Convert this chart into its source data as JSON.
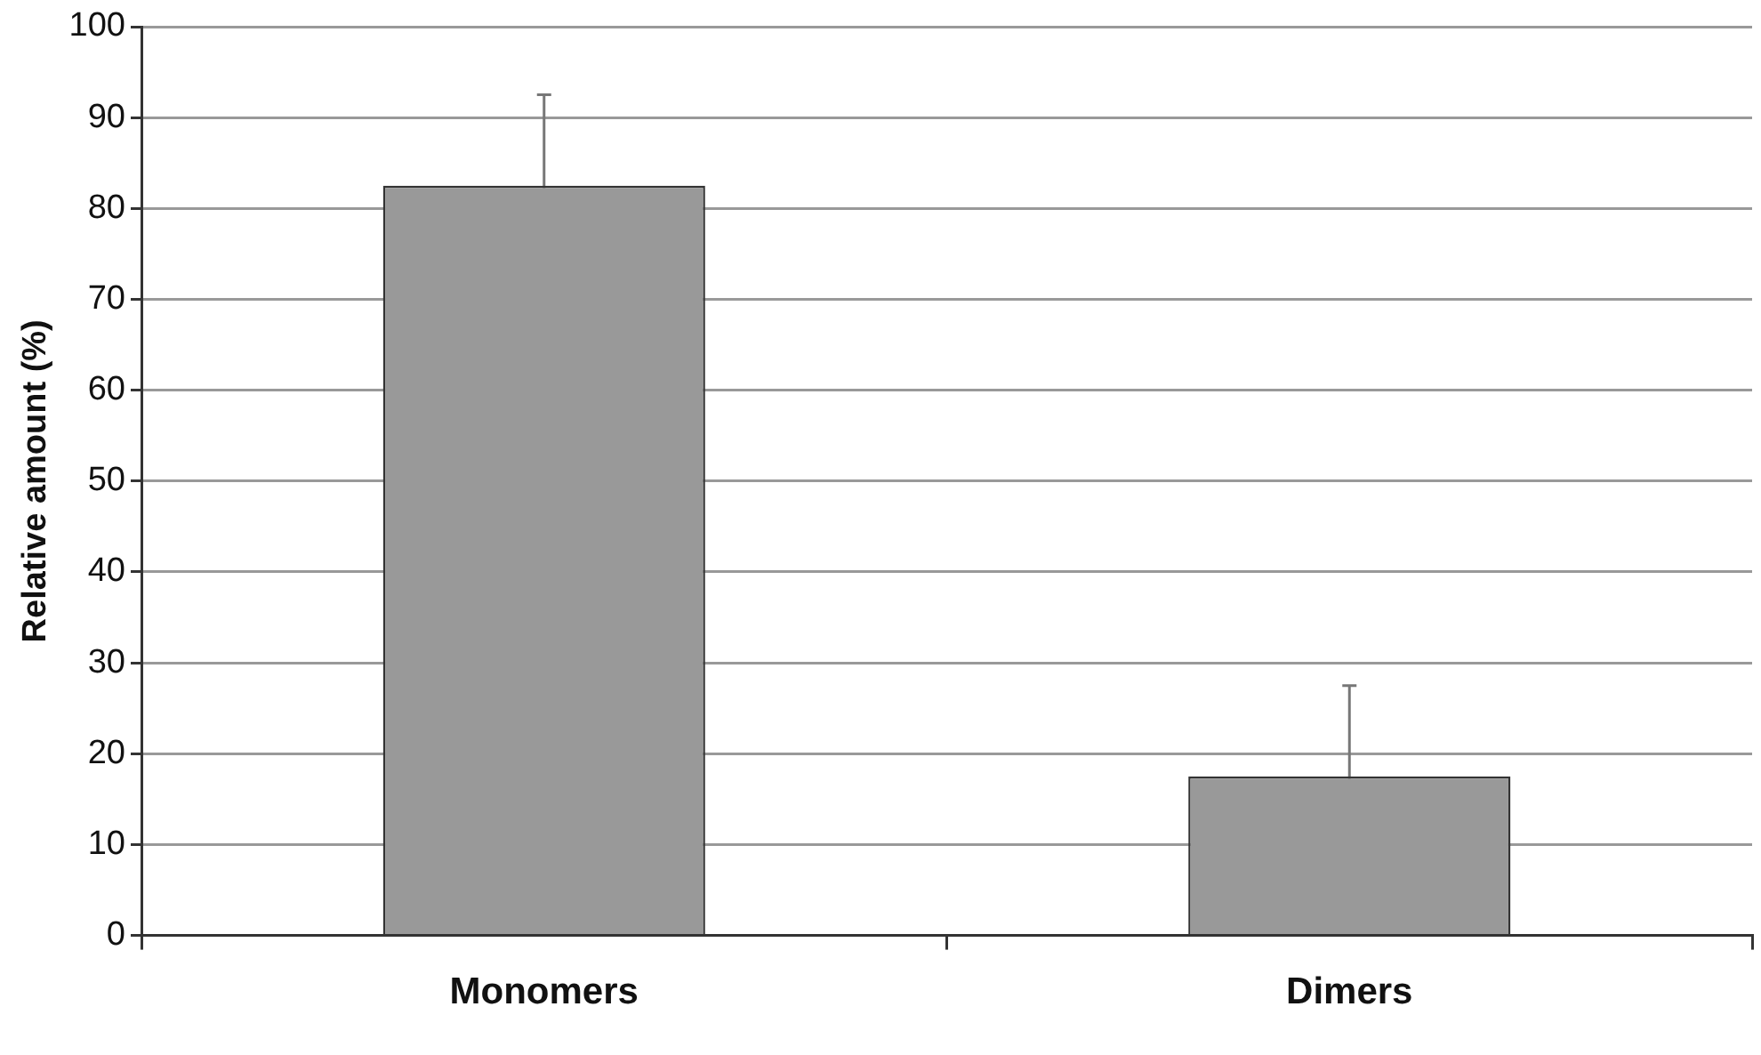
{
  "chart_data": {
    "type": "bar",
    "ylabel": "Relative amount (%)",
    "categories": [
      "Monomers",
      "Dimers"
    ],
    "values": [
      82.5,
      17.5
    ],
    "errors": [
      10,
      10
    ],
    "color": "#999999",
    "ylim": [
      0,
      100
    ],
    "yticks": [
      0,
      10,
      20,
      30,
      40,
      50,
      60,
      70,
      80,
      90,
      100
    ],
    "grid": "y",
    "legend": false
  }
}
